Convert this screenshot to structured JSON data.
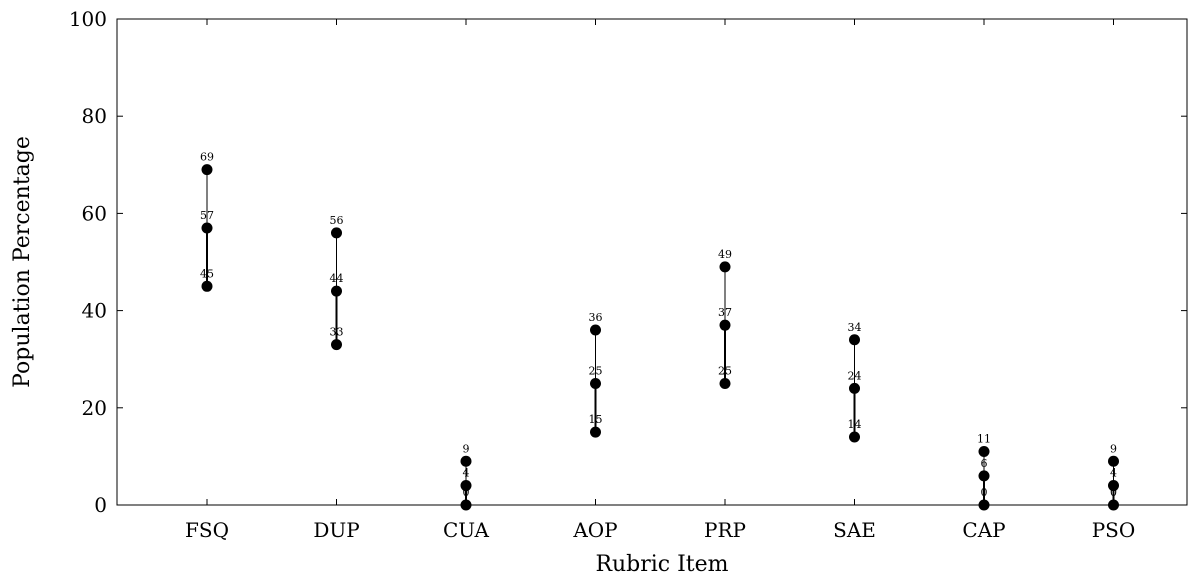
{
  "chart_data": {
    "type": "scatter",
    "xlabel": "Rubric Item",
    "ylabel": "Population Percentage",
    "ylim": [
      0,
      100
    ],
    "yticks": [
      0,
      20,
      40,
      60,
      80,
      100
    ],
    "grid": false,
    "categories": [
      "FSQ",
      "DUP",
      "CUA",
      "AOP",
      "PRP",
      "SAE",
      "CAP",
      "PSO"
    ],
    "low": [
      45,
      33,
      0,
      15,
      25,
      14,
      0,
      0
    ],
    "mid": [
      57,
      44,
      4,
      25,
      37,
      24,
      6,
      4
    ],
    "high": [
      69,
      56,
      9,
      36,
      49,
      34,
      11,
      9
    ]
  }
}
